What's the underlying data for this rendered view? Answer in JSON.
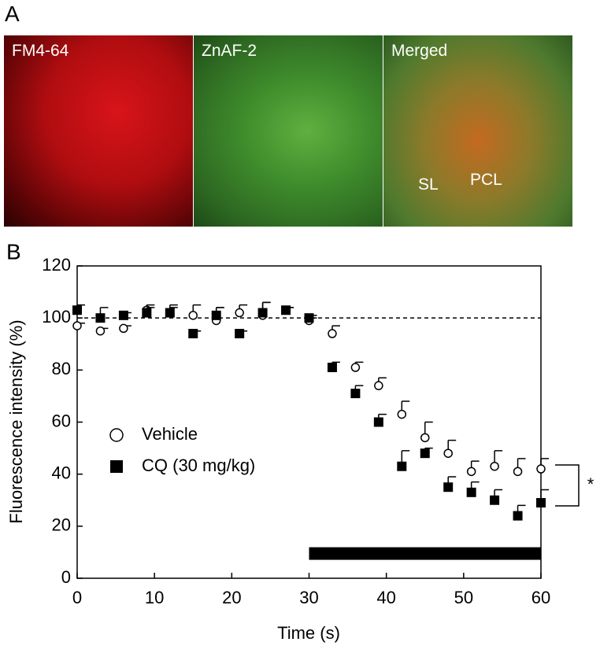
{
  "panel_a": {
    "label": "A",
    "images": [
      {
        "label": "FM4-64"
      },
      {
        "label": "ZnAF-2"
      },
      {
        "label": "Merged"
      }
    ],
    "annotations": [
      "SL",
      "PCL"
    ]
  },
  "chart_data": {
    "type": "scatter",
    "label": "B",
    "x_label": "Time (s)",
    "y_label": "Fluorescence intensity (%)",
    "x": [
      0,
      3,
      6,
      9,
      12,
      15,
      18,
      21,
      24,
      27,
      30,
      33,
      36,
      39,
      42,
      45,
      48,
      51,
      54,
      57,
      60
    ],
    "series": [
      {
        "name": "Vehicle",
        "marker": "circle",
        "color": "#000000",
        "values": [
          97,
          95,
          96,
          103,
          102,
          101,
          99,
          102,
          101,
          103,
          99,
          94,
          81,
          74,
          63,
          54,
          48,
          41,
          43,
          41,
          42
        ],
        "errors": [
          1,
          1,
          1,
          2,
          3,
          4,
          5,
          3,
          5,
          1,
          1,
          3,
          2,
          3,
          5,
          6,
          5,
          4,
          6,
          5,
          4
        ]
      },
      {
        "name": "CQ (30 mg/kg)",
        "marker": "square",
        "color": "#000000",
        "values": [
          103,
          100,
          101,
          102,
          102,
          94,
          101,
          94,
          102,
          103,
          100,
          81,
          71,
          60,
          43,
          48,
          35,
          33,
          30,
          24,
          29
        ],
        "errors": [
          2,
          4,
          1,
          2,
          2,
          1,
          3,
          1,
          4,
          1,
          1,
          2,
          3,
          3,
          6,
          2,
          4,
          4,
          4,
          4,
          5
        ]
      }
    ],
    "xlim": [
      0,
      60
    ],
    "ylim": [
      0,
      120
    ],
    "xticks": [
      0,
      10,
      20,
      30,
      40,
      50,
      60
    ],
    "yticks": [
      0,
      20,
      40,
      60,
      80,
      100,
      120
    ],
    "reference_line": 100,
    "stimulus_bar": [
      30,
      60
    ],
    "significance": "*"
  }
}
